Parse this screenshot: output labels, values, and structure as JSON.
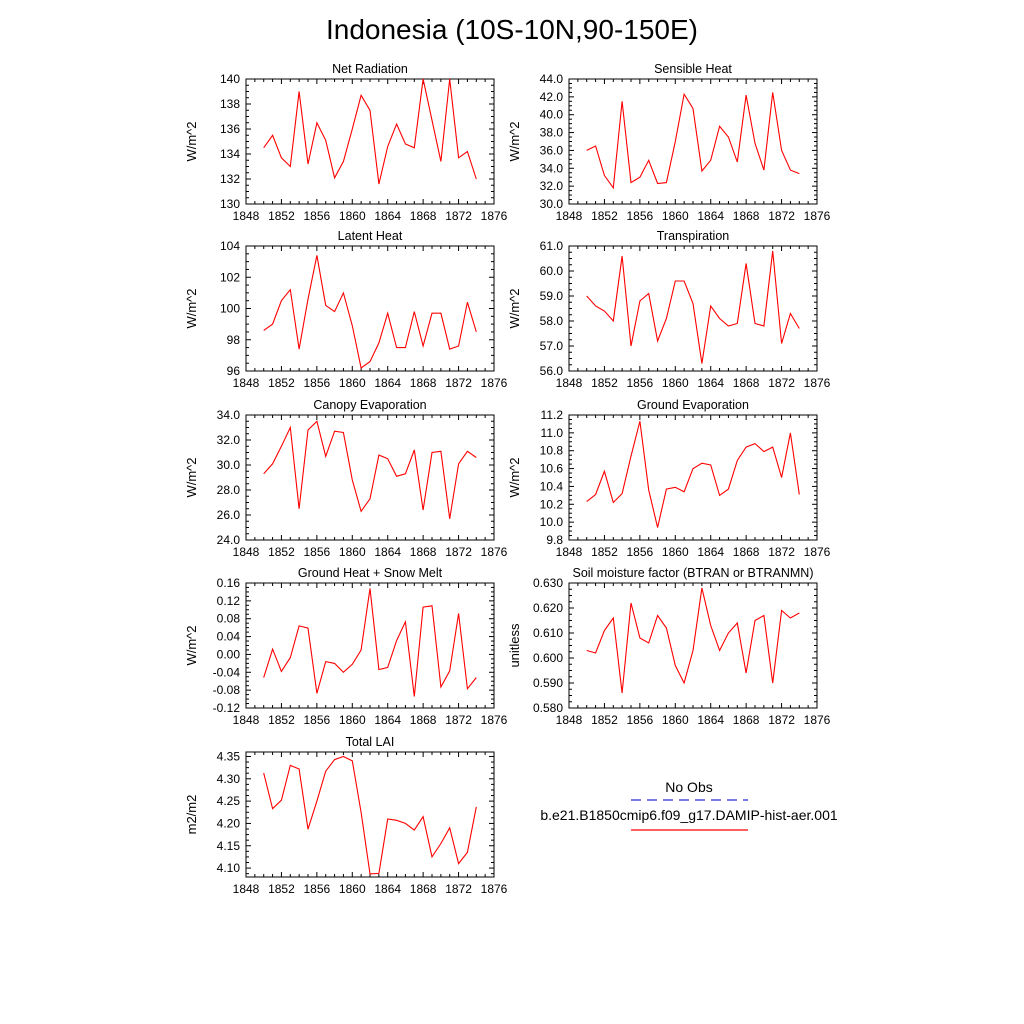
{
  "figure_title": "Indonesia (10S-10N,90-150E)",
  "legend": {
    "items": [
      {
        "label": "No Obs",
        "color": "#2b2bd6",
        "dash": true
      },
      {
        "label": "b.e21.B1850cmip6.f09_g17.DAMIP-hist-aer.001",
        "color": "#ff0000",
        "dash": false
      }
    ]
  },
  "chart_data": [
    {
      "type": "line",
      "title": "Net Radiation",
      "xlabel": "",
      "ylabel": "W/m^2",
      "xlim": [
        1848,
        1876
      ],
      "ylim": [
        130,
        140
      ],
      "xticks": [
        1848,
        1852,
        1856,
        1860,
        1864,
        1868,
        1872,
        1876
      ],
      "yticks": [
        130,
        132,
        134,
        136,
        138,
        140
      ],
      "ydec": 0,
      "grid": false,
      "series": [
        {
          "color": "#ff0000",
          "x": [
            1850,
            1851,
            1852,
            1853,
            1854,
            1855,
            1856,
            1857,
            1858,
            1859,
            1860,
            1861,
            1862,
            1863,
            1864,
            1865,
            1866,
            1867,
            1868,
            1869,
            1870,
            1871,
            1872,
            1873,
            1874
          ],
          "y": [
            134.5,
            135.5,
            133.7,
            133.0,
            139.0,
            133.2,
            136.5,
            135.1,
            132.1,
            133.4,
            136.0,
            138.7,
            137.5,
            131.6,
            134.6,
            136.4,
            134.8,
            134.5,
            140.0,
            136.7,
            133.4,
            140.0,
            133.7,
            134.2,
            132.0
          ]
        }
      ]
    },
    {
      "type": "line",
      "title": "Sensible Heat",
      "xlabel": "",
      "ylabel": "W/m^2",
      "xlim": [
        1848,
        1876
      ],
      "ylim": [
        30,
        44
      ],
      "xticks": [
        1848,
        1852,
        1856,
        1860,
        1864,
        1868,
        1872,
        1876
      ],
      "yticks": [
        30,
        32,
        34,
        36,
        38,
        40,
        42,
        44
      ],
      "ydec": 1,
      "grid": false,
      "series": [
        {
          "color": "#ff0000",
          "x": [
            1850,
            1851,
            1852,
            1853,
            1854,
            1855,
            1856,
            1857,
            1858,
            1859,
            1860,
            1861,
            1862,
            1863,
            1864,
            1865,
            1866,
            1867,
            1868,
            1869,
            1870,
            1871,
            1872,
            1873,
            1874
          ],
          "y": [
            36.0,
            36.5,
            33.2,
            31.8,
            41.5,
            32.4,
            33.0,
            34.9,
            32.3,
            32.4,
            37.0,
            42.3,
            40.7,
            33.7,
            34.9,
            38.7,
            37.5,
            34.7,
            42.2,
            36.8,
            33.8,
            42.5,
            36.0,
            33.8,
            33.4
          ]
        }
      ]
    },
    {
      "type": "line",
      "title": "Latent Heat",
      "xlabel": "",
      "ylabel": "W/m^2",
      "xlim": [
        1848,
        1876
      ],
      "ylim": [
        96,
        104
      ],
      "xticks": [
        1848,
        1852,
        1856,
        1860,
        1864,
        1868,
        1872,
        1876
      ],
      "yticks": [
        96,
        98,
        100,
        102,
        104
      ],
      "ydec": 0,
      "grid": false,
      "series": [
        {
          "color": "#ff0000",
          "x": [
            1850,
            1851,
            1852,
            1853,
            1854,
            1855,
            1856,
            1857,
            1858,
            1859,
            1860,
            1861,
            1862,
            1863,
            1864,
            1865,
            1866,
            1867,
            1868,
            1869,
            1870,
            1871,
            1872,
            1873,
            1874
          ],
          "y": [
            98.6,
            99.0,
            100.5,
            101.2,
            97.4,
            100.6,
            103.4,
            100.2,
            99.8,
            101.0,
            98.9,
            96.2,
            96.6,
            97.8,
            99.7,
            97.5,
            97.5,
            99.8,
            97.6,
            99.7,
            99.7,
            97.4,
            97.6,
            100.4,
            98.5
          ]
        }
      ]
    },
    {
      "type": "line",
      "title": "Transpiration",
      "xlabel": "",
      "ylabel": "W/m^2",
      "xlim": [
        1848,
        1876
      ],
      "ylim": [
        56,
        61
      ],
      "xticks": [
        1848,
        1852,
        1856,
        1860,
        1864,
        1868,
        1872,
        1876
      ],
      "yticks": [
        56,
        57,
        58,
        59,
        60,
        61
      ],
      "ydec": 1,
      "grid": false,
      "series": [
        {
          "color": "#ff0000",
          "x": [
            1850,
            1851,
            1852,
            1853,
            1854,
            1855,
            1856,
            1857,
            1858,
            1859,
            1860,
            1861,
            1862,
            1863,
            1864,
            1865,
            1866,
            1867,
            1868,
            1869,
            1870,
            1871,
            1872,
            1873,
            1874
          ],
          "y": [
            59.0,
            58.6,
            58.4,
            58.0,
            60.6,
            57.0,
            58.8,
            59.1,
            57.2,
            58.1,
            59.6,
            59.6,
            58.7,
            56.3,
            58.6,
            58.1,
            57.8,
            57.9,
            60.3,
            57.9,
            57.8,
            60.8,
            57.1,
            58.3,
            57.7
          ]
        }
      ]
    },
    {
      "type": "line",
      "title": "Canopy Evaporation",
      "xlabel": "",
      "ylabel": "W/m^2",
      "xlim": [
        1848,
        1876
      ],
      "ylim": [
        24,
        34
      ],
      "xticks": [
        1848,
        1852,
        1856,
        1860,
        1864,
        1868,
        1872,
        1876
      ],
      "yticks": [
        24,
        26,
        28,
        30,
        32,
        34
      ],
      "ydec": 1,
      "grid": false,
      "series": [
        {
          "color": "#ff0000",
          "x": [
            1850,
            1851,
            1852,
            1853,
            1854,
            1855,
            1856,
            1857,
            1858,
            1859,
            1860,
            1861,
            1862,
            1863,
            1864,
            1865,
            1866,
            1867,
            1868,
            1869,
            1870,
            1871,
            1872,
            1873,
            1874
          ],
          "y": [
            29.3,
            30.1,
            31.5,
            33.0,
            26.5,
            32.8,
            33.5,
            30.7,
            32.7,
            32.6,
            28.8,
            26.3,
            27.3,
            30.8,
            30.5,
            29.1,
            29.3,
            31.2,
            26.4,
            31.0,
            31.1,
            25.7,
            30.1,
            31.1,
            30.6
          ]
        }
      ]
    },
    {
      "type": "line",
      "title": "Ground Evaporation",
      "xlabel": "",
      "ylabel": "W/m^2",
      "xlim": [
        1848,
        1876
      ],
      "ylim": [
        9.8,
        11.2
      ],
      "xticks": [
        1848,
        1852,
        1856,
        1860,
        1864,
        1868,
        1872,
        1876
      ],
      "yticks": [
        9.8,
        10.0,
        10.2,
        10.4,
        10.6,
        10.8,
        11.0,
        11.2
      ],
      "ydec": 1,
      "grid": false,
      "series": [
        {
          "color": "#ff0000",
          "x": [
            1850,
            1851,
            1852,
            1853,
            1854,
            1855,
            1856,
            1857,
            1858,
            1859,
            1860,
            1861,
            1862,
            1863,
            1864,
            1865,
            1866,
            1867,
            1868,
            1869,
            1870,
            1871,
            1872,
            1873,
            1874
          ],
          "y": [
            10.23,
            10.31,
            10.57,
            10.22,
            10.32,
            10.74,
            11.13,
            10.36,
            9.94,
            10.37,
            10.39,
            10.34,
            10.6,
            10.66,
            10.64,
            10.3,
            10.37,
            10.69,
            10.84,
            10.88,
            10.79,
            10.84,
            10.5,
            11.0,
            10.31
          ]
        }
      ]
    },
    {
      "type": "line",
      "title": "Ground Heat + Snow Melt",
      "xlabel": "",
      "ylabel": "W/m^2",
      "xlim": [
        1848,
        1876
      ],
      "ylim": [
        -0.12,
        0.16
      ],
      "xticks": [
        1848,
        1852,
        1856,
        1860,
        1864,
        1868,
        1872,
        1876
      ],
      "yticks": [
        -0.12,
        -0.08,
        -0.04,
        0.0,
        0.04,
        0.08,
        0.12,
        0.16
      ],
      "ydec": 2,
      "grid": false,
      "series": [
        {
          "color": "#ff0000",
          "x": [
            1850,
            1851,
            1852,
            1853,
            1854,
            1855,
            1856,
            1857,
            1858,
            1859,
            1860,
            1861,
            1862,
            1863,
            1864,
            1865,
            1866,
            1867,
            1868,
            1869,
            1870,
            1871,
            1872,
            1873,
            1874
          ],
          "y": [
            -0.052,
            0.012,
            -0.038,
            -0.007,
            0.064,
            0.059,
            -0.087,
            -0.016,
            -0.02,
            -0.04,
            -0.022,
            0.01,
            0.148,
            -0.034,
            -0.029,
            0.031,
            0.073,
            -0.094,
            0.106,
            0.109,
            -0.073,
            -0.037,
            0.092,
            -0.077,
            -0.052
          ]
        }
      ]
    },
    {
      "type": "line",
      "title": "Soil moisture factor (BTRAN or BTRANMN)",
      "xlabel": "",
      "ylabel": "unitless",
      "xlim": [
        1848,
        1876
      ],
      "ylim": [
        0.58,
        0.63
      ],
      "xticks": [
        1848,
        1852,
        1856,
        1860,
        1864,
        1868,
        1872,
        1876
      ],
      "yticks": [
        0.58,
        0.59,
        0.6,
        0.61,
        0.62,
        0.63
      ],
      "ydec": 3,
      "grid": false,
      "series": [
        {
          "color": "#ff0000",
          "x": [
            1850,
            1851,
            1852,
            1853,
            1854,
            1855,
            1856,
            1857,
            1858,
            1859,
            1860,
            1861,
            1862,
            1863,
            1864,
            1865,
            1866,
            1867,
            1868,
            1869,
            1870,
            1871,
            1872,
            1873,
            1874
          ],
          "y": [
            0.603,
            0.602,
            0.611,
            0.616,
            0.586,
            0.622,
            0.608,
            0.606,
            0.617,
            0.612,
            0.597,
            0.59,
            0.603,
            0.628,
            0.613,
            0.603,
            0.61,
            0.614,
            0.594,
            0.615,
            0.617,
            0.59,
            0.619,
            0.616,
            0.618
          ]
        }
      ]
    },
    {
      "type": "line",
      "title": "Total LAI",
      "xlabel": "",
      "ylabel": "m2/m2",
      "xlim": [
        1848,
        1876
      ],
      "ylim": [
        4.08,
        4.36
      ],
      "xticks": [
        1848,
        1852,
        1856,
        1860,
        1864,
        1868,
        1872,
        1876
      ],
      "yticks": [
        4.1,
        4.15,
        4.2,
        4.25,
        4.3,
        4.35
      ],
      "ydec": 2,
      "grid": false,
      "series": [
        {
          "color": "#ff0000",
          "x": [
            1850,
            1851,
            1852,
            1853,
            1854,
            1855,
            1856,
            1857,
            1858,
            1859,
            1860,
            1861,
            1862,
            1863,
            1864,
            1865,
            1866,
            1867,
            1868,
            1869,
            1870,
            1871,
            1872,
            1873,
            1874
          ],
          "y": [
            4.313,
            4.233,
            4.252,
            4.33,
            4.322,
            4.187,
            4.25,
            4.317,
            4.343,
            4.35,
            4.34,
            4.225,
            4.087,
            4.088,
            4.21,
            4.207,
            4.2,
            4.185,
            4.215,
            4.125,
            4.155,
            4.19,
            4.11,
            4.135,
            4.237
          ]
        }
      ]
    }
  ]
}
